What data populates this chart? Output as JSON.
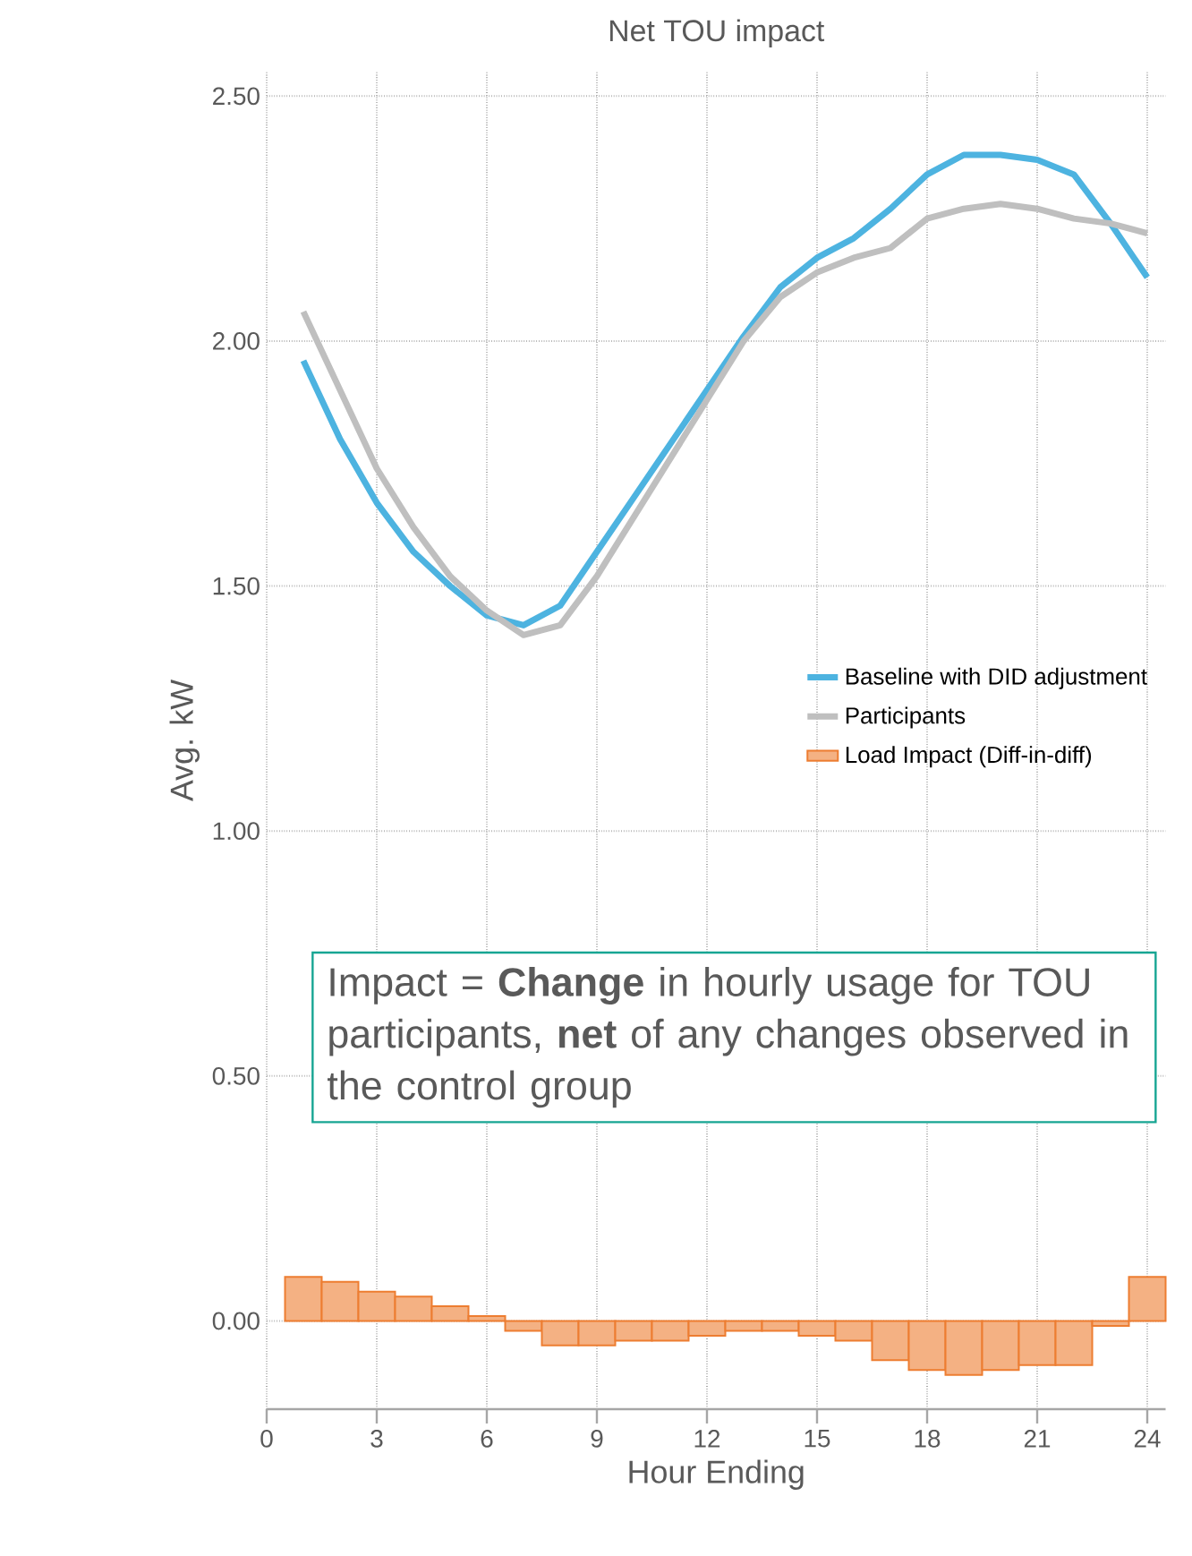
{
  "chart_data": {
    "type": "line",
    "title": "Net TOU impact",
    "xlabel": "Hour Ending",
    "ylabel": "Avg. kW",
    "x": [
      1,
      2,
      3,
      4,
      5,
      6,
      7,
      8,
      9,
      10,
      11,
      12,
      13,
      14,
      15,
      16,
      17,
      18,
      19,
      20,
      21,
      22,
      23,
      24
    ],
    "series": [
      {
        "name": "Baseline with DID adjustment",
        "color": "#4db3e0",
        "values": [
          1.96,
          1.8,
          1.67,
          1.57,
          1.5,
          1.44,
          1.42,
          1.46,
          1.57,
          1.68,
          1.79,
          1.9,
          2.01,
          2.11,
          2.17,
          2.21,
          2.27,
          2.34,
          2.38,
          2.38,
          2.37,
          2.34,
          2.24,
          2.13
        ]
      },
      {
        "name": "Participants",
        "color": "#bfbfbf",
        "values": [
          2.06,
          1.9,
          1.74,
          1.62,
          1.52,
          1.45,
          1.4,
          1.42,
          1.52,
          1.64,
          1.76,
          1.88,
          2.0,
          2.09,
          2.14,
          2.17,
          2.19,
          2.25,
          2.27,
          2.28,
          2.27,
          2.25,
          2.24,
          2.22
        ]
      },
      {
        "name": "Load Impact (Diff-in-diff)",
        "type": "bar",
        "color": "#f4b183",
        "values": [
          0.09,
          0.08,
          0.06,
          0.05,
          0.03,
          0.01,
          -0.02,
          -0.05,
          -0.05,
          -0.04,
          -0.04,
          -0.03,
          -0.02,
          -0.02,
          -0.03,
          -0.04,
          -0.08,
          -0.1,
          -0.11,
          -0.1,
          -0.09,
          -0.09,
          -0.01,
          0.09
        ]
      }
    ],
    "xlim": [
      0,
      24.5
    ],
    "ylim": [
      -0.18,
      2.55
    ],
    "xticks": [
      0,
      3,
      6,
      9,
      12,
      15,
      18,
      21,
      24
    ],
    "yticks": [
      {
        "value": 0,
        "label": "0.00"
      },
      {
        "value": 0.5,
        "label": "0.50"
      },
      {
        "value": 1,
        "label": "1.00"
      },
      {
        "value": 1.5,
        "label": "1.50"
      },
      {
        "value": 2,
        "label": "2.00"
      },
      {
        "value": 2.5,
        "label": "2.50"
      }
    ],
    "grid": true,
    "legend": "right",
    "marker": "none",
    "line_style": "solid",
    "annotations": [
      "Impact = **Change** in hourly usage for TOU participants, **net** of any changes observed in the control group"
    ]
  }
}
